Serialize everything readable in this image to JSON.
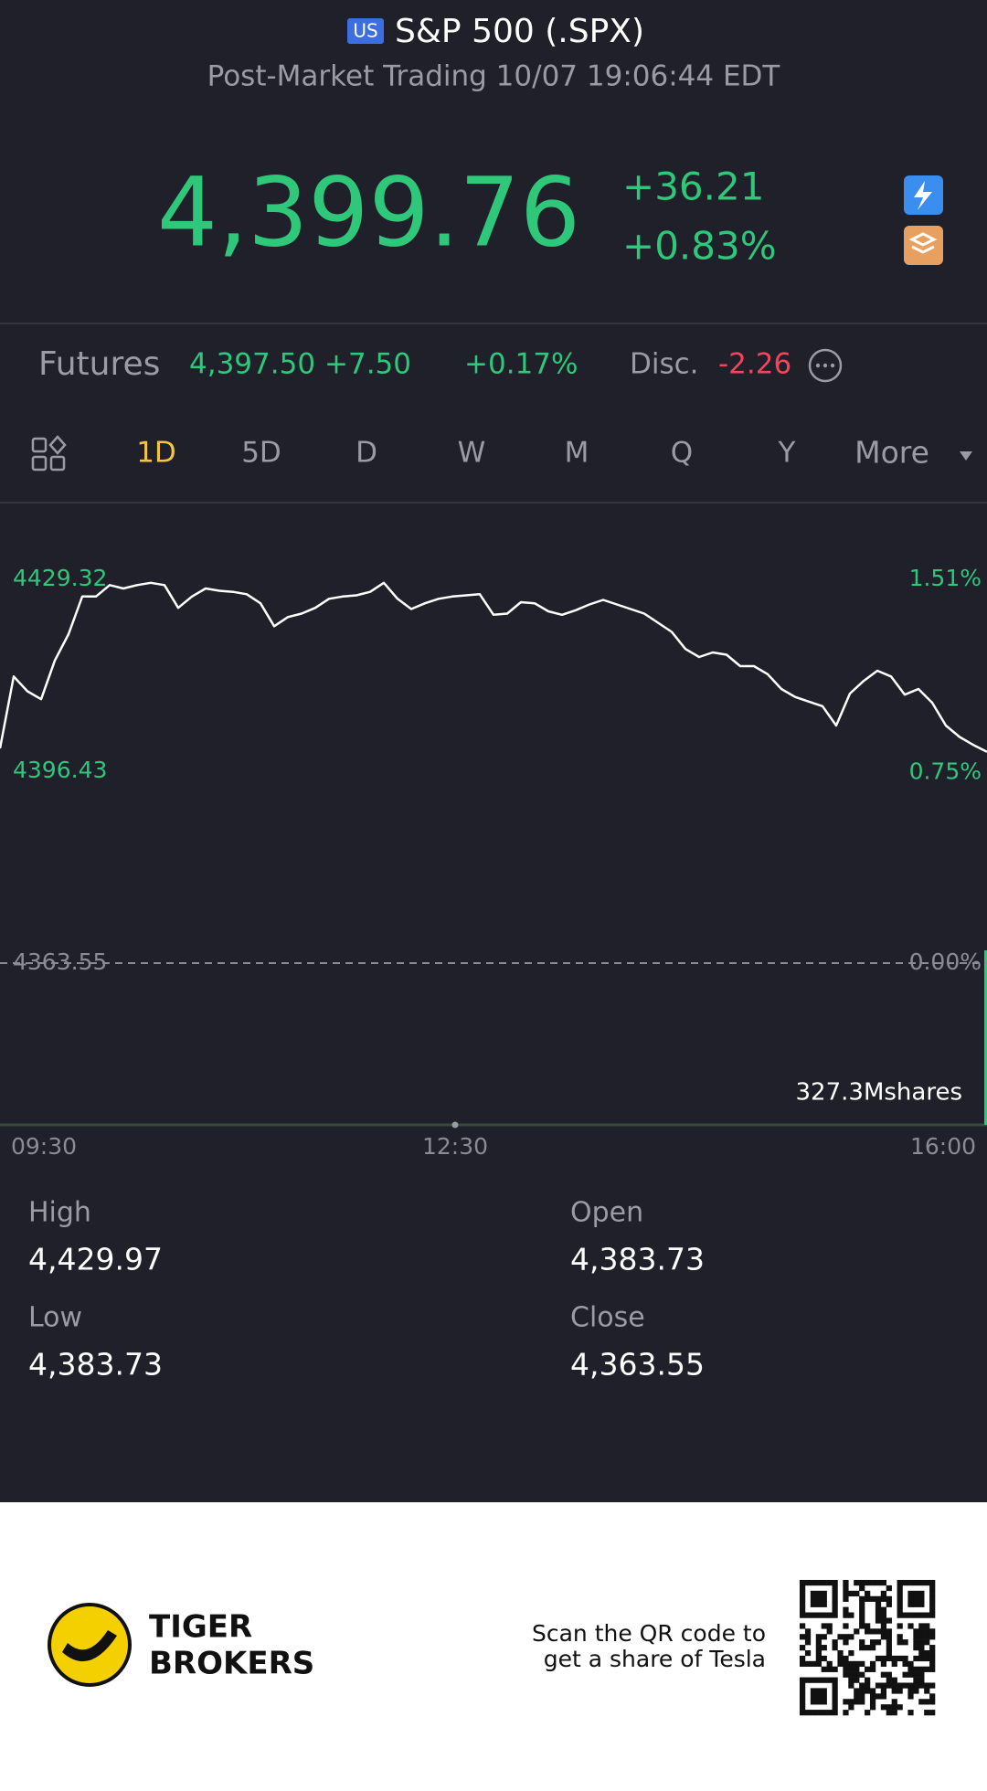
{
  "header": {
    "badge": "US",
    "title": "S&P 500 (.SPX)",
    "subtitle": "Post-Market Trading 10/07 19:06:44 EDT"
  },
  "quote": {
    "price": "4,399.76",
    "change": "+36.21",
    "change_pct": "+0.83%"
  },
  "futures": {
    "label": "Futures",
    "price": "4,397.50",
    "change": "+7.50",
    "change_pct": "+0.17%",
    "disc_label": "Disc.",
    "disc": "-2.26"
  },
  "tabs": [
    "1D",
    "5D",
    "D",
    "W",
    "M",
    "Q",
    "Y",
    "More"
  ],
  "chart": {
    "type": "line",
    "color": "#ffffff",
    "values": [
      4400.35,
      4412.68,
      4410.14,
      4408.77,
      4415.42,
      4419.92,
      4426.38,
      4426.38,
      4428.34,
      4427.75,
      4428.34,
      4428.73,
      4428.34,
      4424.43,
      4426.38,
      4427.75,
      4427.36,
      4427.17,
      4426.77,
      4425.21,
      4421.29,
      4422.86,
      4423.45,
      4424.43,
      4425.99,
      4426.38,
      4426.58,
      4427.17,
      4428.73,
      4425.99,
      4424.23,
      4425.21,
      4425.99,
      4426.38,
      4426.58,
      4426.77,
      4423.25,
      4423.45,
      4425.4,
      4425.21,
      4423.84,
      4423.25,
      4424.03,
      4425.01,
      4425.8,
      4425.01,
      4424.23,
      4423.45,
      4421.88,
      4420.31,
      4417.38,
      4416.01,
      4416.79,
      4416.4,
      4414.44,
      4414.44,
      4413.07,
      4410.53,
      4409.16,
      4408.37,
      4407.59,
      4404.26,
      4409.74,
      4411.9,
      4413.66,
      4412.68,
      4409.55,
      4410.53,
      4408.18,
      4404.26,
      4402.31,
      4400.94,
      4399.76
    ],
    "ylim": [
      4363.55,
      4429.32
    ],
    "yticks": [
      4429.32,
      4396.43,
      4363.55
    ],
    "y2lim": [
      0,
      1.51
    ],
    "y2ticks": [
      {
        "value": 1.51,
        "label": "1.51%"
      },
      {
        "value": 0.75,
        "label": "0.75%"
      },
      {
        "value": 0,
        "label": "0.00%"
      }
    ],
    "volume_label": "327.3Mshares",
    "time_labels": [
      "09:30",
      "12:30",
      "16:00"
    ]
  },
  "stats": [
    {
      "label": "High",
      "value": "4,429.97"
    },
    {
      "label": "Open",
      "value": "4,383.73"
    },
    {
      "label": "Low",
      "value": "4,383.73"
    },
    {
      "label": "Close",
      "value": "4,363.55"
    }
  ],
  "footer": {
    "brand": [
      "TIGER",
      "BROKERS"
    ],
    "scan": [
      "Scan the QR code to",
      "get a share of Tesla"
    ]
  }
}
